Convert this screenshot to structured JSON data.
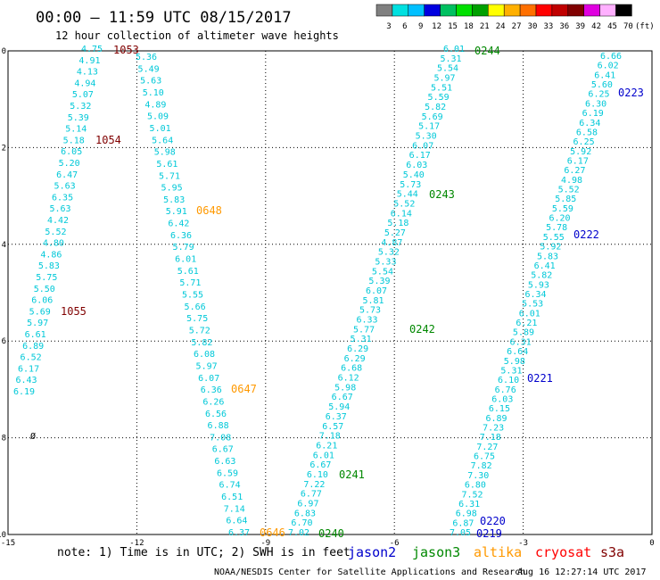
{
  "header": {
    "title": "00:00 – 11:59 UTC 08/15/2017",
    "subtitle": "12 hour collection of altimeter wave heights"
  },
  "legend": {
    "colors": [
      "#808080",
      "#00e0e0",
      "#00c0ff",
      "#0000e0",
      "#00c060",
      "#00e000",
      "#00a000",
      "#ffff00",
      "#ffb000",
      "#ff7000",
      "#ff0000",
      "#c00000",
      "#800000",
      "#e000e0",
      "#ffb0ff",
      "#000000"
    ],
    "labels": [
      "3",
      "6",
      "9",
      "12",
      "15",
      "18",
      "21",
      "24",
      "27",
      "30",
      "33",
      "36",
      "39",
      "42",
      "45",
      "70"
    ],
    "unit": "(ft)"
  },
  "axes": {
    "xlim": [
      -15,
      0
    ],
    "ylim": [
      -10,
      0
    ],
    "xticks": [
      "-15",
      "-12",
      "-9",
      "-6",
      "-3",
      "0"
    ],
    "yticks": [
      "0",
      "-2",
      "-4",
      "-6",
      "-8",
      "-10"
    ]
  },
  "passes": [
    {
      "label": "1053",
      "color": "#800000"
    },
    {
      "label": "1054",
      "color": "#800000"
    },
    {
      "label": "1055",
      "color": "#800000"
    },
    {
      "label": "0648",
      "color": "#ff9900"
    },
    {
      "label": "0647",
      "color": "#ff9900"
    },
    {
      "label": "0646",
      "color": "#ff9900"
    },
    {
      "label": "0244",
      "color": "#008800"
    },
    {
      "label": "0243",
      "color": "#008800"
    },
    {
      "label": "0242",
      "color": "#008800"
    },
    {
      "label": "0241",
      "color": "#008800"
    },
    {
      "label": "0240",
      "color": "#008800"
    },
    {
      "label": "0223",
      "color": "#0000cc"
    },
    {
      "label": "0222",
      "color": "#0000cc"
    },
    {
      "label": "0221",
      "color": "#0000cc"
    },
    {
      "label": "0220",
      "color": "#0000cc"
    },
    {
      "label": "0219",
      "color": "#0000cc"
    }
  ],
  "tracks": [
    {
      "values": [
        "4.75",
        "4.91",
        "4.13",
        "4.94",
        "5.07",
        "5.32",
        "5.39",
        "5.14",
        "5.18",
        "6.05",
        "5.20",
        "6.47",
        "5.63",
        "6.35",
        "5.63",
        "4.42",
        "5.52",
        "4.80",
        "4.86",
        "5.83",
        "5.75",
        "5.50",
        "6.06",
        "5.69",
        "5.97",
        "6.61",
        "6.89",
        "6.52",
        "6.17",
        "6.43",
        "6.19"
      ]
    },
    {
      "values": [
        "5.36",
        "5.49",
        "5.63",
        "5.10",
        "4.89",
        "5.09",
        "5.01",
        "5.64",
        "5.98",
        "5.61",
        "5.71",
        "5.95",
        "5.83",
        "5.91",
        "6.42",
        "6.36",
        "5.79",
        "6.01",
        "5.61",
        "5.71",
        "5.55",
        "5.66",
        "5.75",
        "5.72",
        "5.82",
        "6.08",
        "5.97",
        "6.07",
        "6.36",
        "6.26",
        "6.56",
        "6.88",
        "7.08",
        "6.67",
        "6.63",
        "6.59",
        "6.74",
        "6.51",
        "7.14",
        "6.64",
        "6.37"
      ]
    },
    {
      "values": [
        "6.01",
        "5.31",
        "5.54",
        "5.97",
        "5.51",
        "5.59",
        "5.82",
        "5.69",
        "5.17",
        "5.30",
        "6.07",
        "6.17",
        "6.03",
        "5.40",
        "5.73",
        "5.44",
        "5.52",
        "6.14",
        "5.18",
        "5.27",
        "4.87",
        "5.32",
        "5.33",
        "5.54",
        "5.39",
        "6.07",
        "5.81",
        "5.73",
        "6.33",
        "5.77",
        "5.31",
        "6.29",
        "6.29",
        "6.68",
        "6.12",
        "5.98",
        "6.67",
        "5.94",
        "6.37",
        "6.57",
        "7.18",
        "6.21",
        "6.01",
        "6.67",
        "6.10",
        "7.22",
        "6.77",
        "6.97",
        "6.83",
        "6.70",
        "7.02"
      ]
    },
    {
      "values": [
        "6.66",
        "6.02",
        "6.41",
        "5.60",
        "6.25",
        "6.30",
        "6.19",
        "6.34",
        "6.58",
        "6.25",
        "5.92",
        "6.17",
        "6.27",
        "4.98",
        "5.52",
        "5.85",
        "5.59",
        "6.20",
        "5.78",
        "5.55",
        "5.92",
        "5.83",
        "6.41",
        "5.82",
        "5.93",
        "6.34",
        "5.53",
        "6.01",
        "6.21",
        "5.89",
        "6.31",
        "6.64",
        "5.98",
        "5.31",
        "6.10",
        "6.76",
        "6.03",
        "6.15",
        "6.89",
        "7.23",
        "7.18",
        "7.27",
        "6.75",
        "7.82",
        "7.30",
        "6.80",
        "7.52",
        "6.31",
        "6.98",
        "6.87",
        "7.05"
      ]
    }
  ],
  "marker": {
    "symbol": "Ø"
  },
  "note": "note: 1) Time is in UTC; 2) SWH is in feet",
  "satellites": [
    {
      "name": "jason2",
      "color": "#0000cc"
    },
    {
      "name": "jason3",
      "color": "#008800"
    },
    {
      "name": "altika",
      "color": "#ff9900"
    },
    {
      "name": "cryosat",
      "color": "#ff0000"
    },
    {
      "name": "s3a",
      "color": "#800000"
    }
  ],
  "footer": {
    "center": "NOAA/NESDIS Center for Satellite Applications and Research",
    "timestamp": "Aug 16 12:27:14 UTC 2017"
  }
}
